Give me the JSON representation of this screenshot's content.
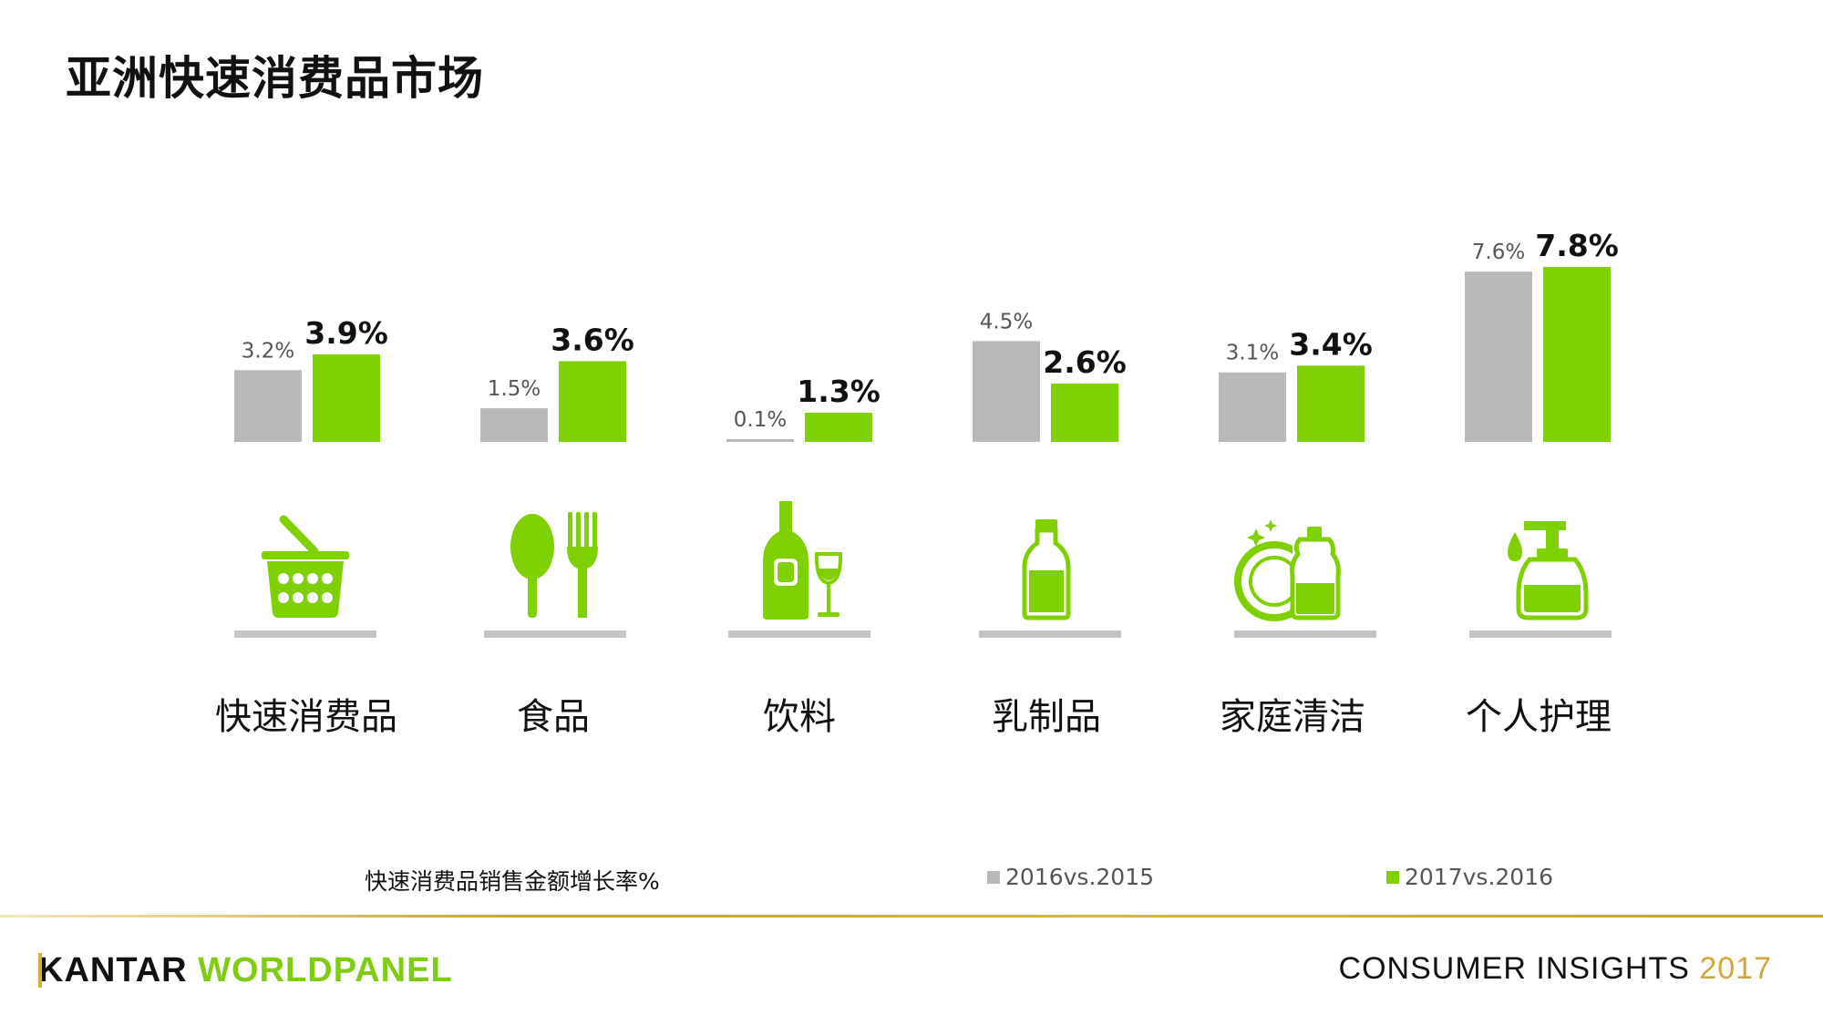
{
  "title": "亚洲快速消费品市场",
  "chart_data": {
    "type": "bar",
    "title": "亚洲快速消费品市场",
    "ylabel": "快速消费品销售金额增长率%",
    "categories": [
      "快速消费品",
      "食品",
      "饮料",
      "乳制品",
      "家庭清洁",
      "个人护理"
    ],
    "series": [
      {
        "name": "2016vs.2015",
        "values": [
          3.2,
          1.5,
          0.1,
          4.5,
          3.1,
          7.6
        ],
        "labels": [
          "3.2%",
          "1.5%",
          "0.1%",
          "4.5%",
          "3.1%",
          "7.6%"
        ]
      },
      {
        "name": "2017vs.2016",
        "values": [
          3.9,
          3.6,
          1.3,
          2.6,
          3.4,
          7.8
        ],
        "labels": [
          "3.9%",
          "3.6%",
          "1.3%",
          "2.6%",
          "3.4%",
          "7.8%"
        ]
      }
    ],
    "ylim": [
      0,
      8
    ],
    "legend": "bottom",
    "grid": false
  },
  "icons": [
    "basket-icon",
    "spoon-fork-icon",
    "wine-bottle-glass-icon",
    "milk-bottle-icon",
    "dish-detergent-icon",
    "pump-bottle-icon"
  ],
  "footer": {
    "caption": "快速消费品销售金额增长率%",
    "legend_prev": "2016vs.2015",
    "legend_cur": "2017vs.2016",
    "brand_kantar": "KANTAR",
    "brand_worldpanel": "WORLDPANEL",
    "insights": "CONSUMER INSIGHTS",
    "insights_year": "2017"
  },
  "colors": {
    "prev": "#b9b9b9",
    "cur": "#7fd000",
    "icon": "#7fd000",
    "shelf": "#c4c4c4",
    "gold": "#c9a227"
  }
}
